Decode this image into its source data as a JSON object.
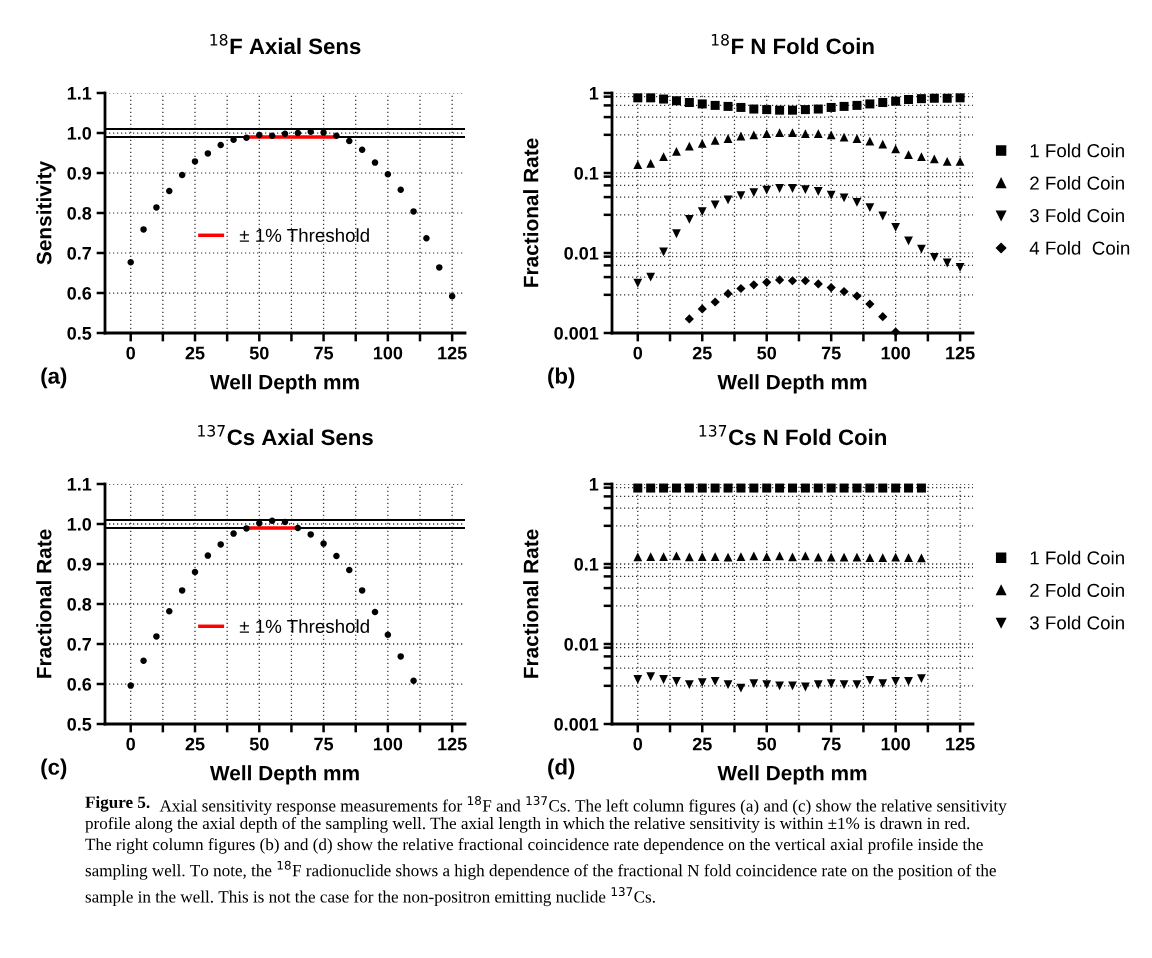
{
  "chart_data": [
    {
      "type": "scatter",
      "title": "$^{18}$F Axial Sens",
      "xlabel": "Well Depth mm",
      "ylabel": "Sensitivity",
      "annotations": [
        "(a)"
      ],
      "x": [
        0,
        5,
        10,
        15,
        20,
        25,
        30,
        35,
        40,
        45,
        50,
        55,
        60,
        65,
        70,
        75,
        80,
        85,
        90,
        95,
        100,
        105,
        110,
        115,
        120,
        125
      ],
      "series": [
        {
          "color": "#000000",
          "marker": "circle",
          "values": [
            0.677,
            0.759,
            0.814,
            0.855,
            0.895,
            0.929,
            0.949,
            0.97,
            0.983,
            0.988,
            0.995,
            0.993,
            0.998,
            1.0,
            1.003,
            1.001,
            0.993,
            0.98,
            0.958,
            0.926,
            0.897,
            0.858,
            0.804,
            0.737,
            0.664,
            0.592
          ]
        },
        {
          "type": "line",
          "name": "± 1% Threshold",
          "color": "#ff0000",
          "x": [
            45,
            80
          ],
          "values": [
            0.99,
            0.99
          ],
          "line_style": "solid"
        }
      ],
      "ref_lines": [
        {
          "axis": "y",
          "value": 0.99,
          "color": "#000000",
          "line_style": "solid"
        },
        {
          "axis": "y",
          "value": 1.01,
          "color": "#000000",
          "line_style": "solid"
        }
      ],
      "xlim": [
        -10,
        130
      ],
      "xticks": [
        0,
        {
          "value": 12.5,
          "label": null
        },
        25,
        {
          "value": 37.5,
          "label": null
        },
        50,
        {
          "value": 62.5,
          "label": null
        },
        75,
        {
          "value": 87.5,
          "label": null
        },
        100,
        {
          "value": 112.5,
          "label": null
        },
        125
      ],
      "ylim": [
        0.5,
        1.1
      ],
      "yticks": [
        0.5,
        0.6,
        0.7,
        0.8,
        0.9,
        {
          "value": 1,
          "label": "1.0"
        },
        1.1
      ],
      "grid": true,
      "legend": "center"
    },
    {
      "type": "scatter",
      "title": "$^{18}$F N Fold Coin",
      "xlabel": "Well Depth mm",
      "ylabel": "Fractional Rate",
      "annotations": [
        "(b)"
      ],
      "x": [
        0,
        5,
        10,
        15,
        20,
        25,
        30,
        35,
        40,
        45,
        50,
        55,
        60,
        65,
        70,
        75,
        80,
        85,
        90,
        95,
        100,
        105,
        110,
        115,
        120,
        125
      ],
      "series": [
        {
          "name": "1 Fold Coin",
          "color": "#000000",
          "marker": "square",
          "values": [
            0.87,
            0.87,
            0.84,
            0.8,
            0.76,
            0.73,
            0.7,
            0.68,
            0.66,
            0.63,
            0.62,
            0.61,
            0.61,
            0.62,
            0.63,
            0.66,
            0.68,
            0.7,
            0.73,
            0.76,
            0.79,
            0.83,
            0.85,
            0.86,
            0.86,
            0.87
          ]
        },
        {
          "name": "2 Fold Coin",
          "color": "#000000",
          "marker": "triangle",
          "values": [
            0.127,
            0.132,
            0.16,
            0.186,
            0.217,
            0.235,
            0.255,
            0.27,
            0.29,
            0.3,
            0.31,
            0.32,
            0.32,
            0.31,
            0.31,
            0.3,
            0.28,
            0.27,
            0.25,
            0.23,
            0.2,
            0.17,
            0.16,
            0.15,
            0.14,
            0.14
          ]
        },
        {
          "name": "3 Fold Coin",
          "color": "#000000",
          "marker": "triangle-down",
          "values": [
            0.0042,
            0.005,
            0.0103,
            0.0174,
            0.0263,
            0.033,
            0.04,
            0.046,
            0.052,
            0.057,
            0.061,
            0.064,
            0.064,
            0.062,
            0.059,
            0.053,
            0.049,
            0.043,
            0.037,
            0.029,
            0.0209,
            0.0142,
            0.0112,
            0.0088,
            0.0075,
            0.0066
          ]
        },
        {
          "name": "4 Fold  Coin",
          "color": "#000000",
          "marker": "diamond",
          "x": [
            20,
            25,
            30,
            35,
            40,
            45,
            50,
            55,
            60,
            65,
            70,
            75,
            80,
            85,
            90,
            95,
            100
          ],
          "values": [
            0.0015,
            0.002,
            0.00244,
            0.0031,
            0.0036,
            0.004,
            0.0043,
            0.0046,
            0.0045,
            0.0045,
            0.0041,
            0.0037,
            0.0033,
            0.0029,
            0.0023,
            0.0016,
            0.00103
          ]
        }
      ],
      "xlim": [
        -10,
        130
      ],
      "xticks": [
        0,
        {
          "value": 12.5,
          "label": null
        },
        25,
        {
          "value": 37.5,
          "label": null
        },
        50,
        {
          "value": 62.5,
          "label": null
        },
        75,
        {
          "value": 87.5,
          "label": null
        },
        100,
        {
          "value": 112.5,
          "label": null
        },
        125
      ],
      "log": "y",
      "ylim": [
        0.001,
        1
      ],
      "yticks": [
        0.001,
        {
          "value": 0.003,
          "label": null
        },
        {
          "value": 0.005,
          "label": null
        },
        {
          "value": 0.007,
          "label": null
        },
        {
          "value": 0.009,
          "label": null
        },
        0.01,
        {
          "value": 0.03,
          "label": null
        },
        {
          "value": 0.05,
          "label": null
        },
        {
          "value": 0.07,
          "label": null
        },
        {
          "value": 0.09,
          "label": null
        },
        0.1,
        {
          "value": 0.3,
          "label": null
        },
        {
          "value": 0.5,
          "label": null
        },
        {
          "value": 0.7,
          "label": null
        },
        {
          "value": 0.9,
          "label": null
        },
        1
      ],
      "grid": true,
      "legend": "right"
    },
    {
      "type": "scatter",
      "title": "$^{137}$Cs Axial Sens",
      "xlabel": "Well Depth mm",
      "ylabel": "Fractional Rate",
      "annotations": [
        "(c)"
      ],
      "x": [
        0,
        5,
        10,
        15,
        20,
        25,
        30,
        35,
        40,
        45,
        50,
        55,
        60,
        65,
        70,
        75,
        80,
        85,
        90,
        95,
        100,
        105,
        110
      ],
      "series": [
        {
          "color": "#000000",
          "marker": "circle",
          "values": [
            0.596,
            0.658,
            0.719,
            0.782,
            0.834,
            0.88,
            0.921,
            0.949,
            0.976,
            0.989,
            1.002,
            1.008,
            1.005,
            0.99,
            0.974,
            0.951,
            0.92,
            0.885,
            0.834,
            0.78,
            0.723,
            0.669,
            0.608
          ]
        },
        {
          "type": "line",
          "name": "± 1% Threshold",
          "color": "#ff0000",
          "x": [
            45,
            65
          ],
          "values": [
            0.99,
            0.99
          ],
          "line_style": "solid"
        }
      ],
      "ref_lines": [
        {
          "axis": "y",
          "value": 0.99,
          "color": "#000000",
          "line_style": "solid"
        },
        {
          "axis": "y",
          "value": 1.01,
          "color": "#000000",
          "line_style": "solid"
        }
      ],
      "xlim": [
        -10,
        130
      ],
      "xticks": [
        0,
        {
          "value": 12.5,
          "label": null
        },
        25,
        {
          "value": 37.5,
          "label": null
        },
        50,
        {
          "value": 62.5,
          "label": null
        },
        75,
        {
          "value": 87.5,
          "label": null
        },
        100,
        {
          "value": 112.5,
          "label": null
        },
        125
      ],
      "ylim": [
        0.5,
        1.1
      ],
      "yticks": [
        0.5,
        0.6,
        0.7,
        0.8,
        0.9,
        {
          "value": 1,
          "label": "1.0"
        },
        1.1
      ],
      "grid": true,
      "legend": "center"
    },
    {
      "type": "scatter",
      "title": "$^{137}$Cs N Fold Coin",
      "xlabel": "Well Depth mm",
      "ylabel": "Fractional Rate",
      "annotations": [
        "(d)",
        "Figure 5.",
        "Axial sensitivity response measurements for $^{18}$F and $^{137}$Cs. The left column figures (a) and (c) show the relative sensitivity\nprofile along the axial depth of the sampling well. The axial length in which the relative sensitivity is within ±1% is drawn in red.\nThe right column figures (b) and (d) show the relative fractional coincidence rate dependence on the vertical axial profile inside the\nsampling well. To note, the $^{18}$F radionuclide shows a high dependence of the fractional N fold coincidence rate on the position of the\nsample in the well. This is not the case for the non-positron emitting nuclide $^{137}$Cs."
      ],
      "x": [
        0,
        5,
        10,
        15,
        20,
        25,
        30,
        35,
        40,
        45,
        50,
        55,
        60,
        65,
        70,
        75,
        80,
        85,
        90,
        95,
        100,
        105,
        110
      ],
      "series": [
        {
          "name": "1 Fold Coin",
          "color": "#000000",
          "marker": "square",
          "values": [
            0.89,
            0.89,
            0.89,
            0.89,
            0.89,
            0.89,
            0.89,
            0.89,
            0.89,
            0.89,
            0.89,
            0.89,
            0.89,
            0.89,
            0.89,
            0.89,
            0.89,
            0.89,
            0.89,
            0.89,
            0.89,
            0.89,
            0.89
          ]
        },
        {
          "name": "2 Fold Coin",
          "color": "#000000",
          "marker": "triangle",
          "values": [
            0.123,
            0.124,
            0.124,
            0.126,
            0.123,
            0.124,
            0.124,
            0.122,
            0.124,
            0.126,
            0.124,
            0.126,
            0.123,
            0.126,
            0.122,
            0.122,
            0.122,
            0.122,
            0.12,
            0.12,
            0.122,
            0.12,
            0.119
          ]
        },
        {
          "name": "3 Fold Coin",
          "color": "#000000",
          "marker": "triangle-down",
          "values": [
            0.0036,
            0.0039,
            0.0036,
            0.0034,
            0.0031,
            0.0033,
            0.0034,
            0.0031,
            0.0028,
            0.0032,
            0.0031,
            0.003,
            0.003,
            0.0029,
            0.0031,
            0.0032,
            0.0031,
            0.0031,
            0.0035,
            0.0032,
            0.0034,
            0.0034,
            0.0037
          ]
        }
      ],
      "xlim": [
        -10,
        130
      ],
      "xticks": [
        0,
        {
          "value": 12.5,
          "label": null
        },
        25,
        {
          "value": 37.5,
          "label": null
        },
        50,
        {
          "value": 62.5,
          "label": null
        },
        75,
        {
          "value": 87.5,
          "label": null
        },
        100,
        {
          "value": 112.5,
          "label": null
        },
        125
      ],
      "log": "y",
      "ylim": [
        0.001,
        1
      ],
      "yticks": [
        0.001,
        {
          "value": 0.003,
          "label": null
        },
        {
          "value": 0.005,
          "label": null
        },
        {
          "value": 0.007,
          "label": null
        },
        {
          "value": 0.009,
          "label": null
        },
        0.01,
        {
          "value": 0.03,
          "label": null
        },
        {
          "value": 0.05,
          "label": null
        },
        {
          "value": 0.07,
          "label": null
        },
        {
          "value": 0.09,
          "label": null
        },
        0.1,
        {
          "value": 0.3,
          "label": null
        },
        {
          "value": 0.5,
          "label": null
        },
        {
          "value": 0.7,
          "label": null
        },
        {
          "value": 0.9,
          "label": null
        },
        1
      ],
      "grid": true,
      "legend": "right"
    }
  ]
}
